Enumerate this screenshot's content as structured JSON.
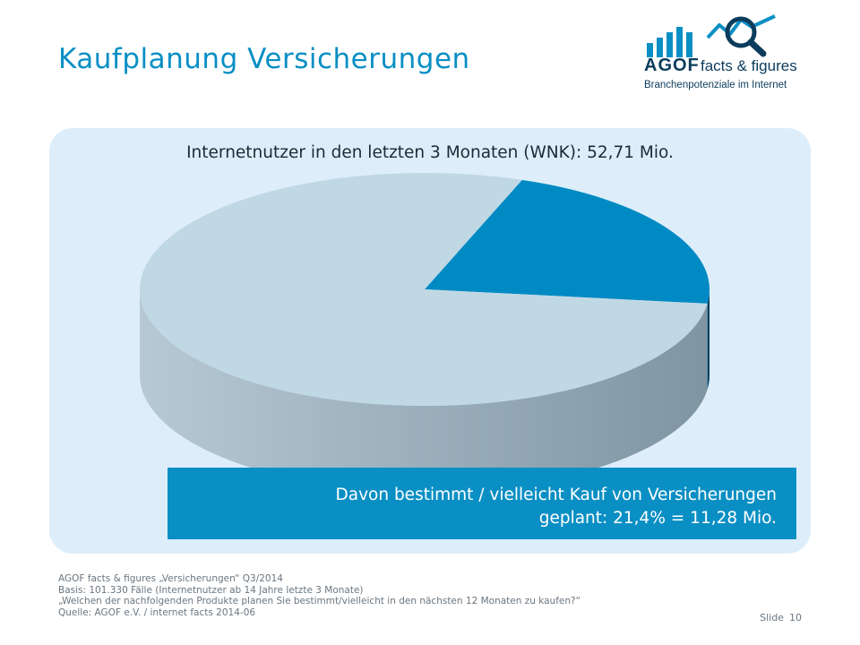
{
  "header": {
    "title": "Kaufplanung Versicherungen"
  },
  "logo": {
    "brand": "AGOF",
    "tagline": "facts & figures",
    "subline": "Branchenpotenziale im Internet"
  },
  "colors": {
    "accent": "#0a8fc4",
    "brand_dark": "#0c3c5c",
    "panel": "#ddeefa",
    "slice_highlight": "#008ac4",
    "slice_rest": "#c0d8e4"
  },
  "chart_data": {
    "type": "pie",
    "title": "Internetnutzer in den letzten 3 Monaten (WNK): 52,71 Mio.",
    "slices": [
      {
        "value": 21.4
      },
      {
        "value": 78.6
      }
    ],
    "annotation": [
      "Davon bestimmt / vielleicht Kauf von Versicherungen",
      "geplant: 21,4% = 11,28 Mio."
    ]
  },
  "footer": {
    "lines": [
      "AGOF facts & figures „Versicherungen“ Q3/2014",
      "Basis: 101.330 Fälle (Internetnutzer ab 14 Jahre letzte 3 Monate)",
      "„Welchen der nachfolgenden Produkte planen Sie bestimmt/vielleicht in den nächsten 12 Monaten zu kaufen?“",
      "Quelle: AGOF e.V. / internet facts 2014-06"
    ],
    "slide_label": "Slide",
    "slide_number": "10"
  }
}
